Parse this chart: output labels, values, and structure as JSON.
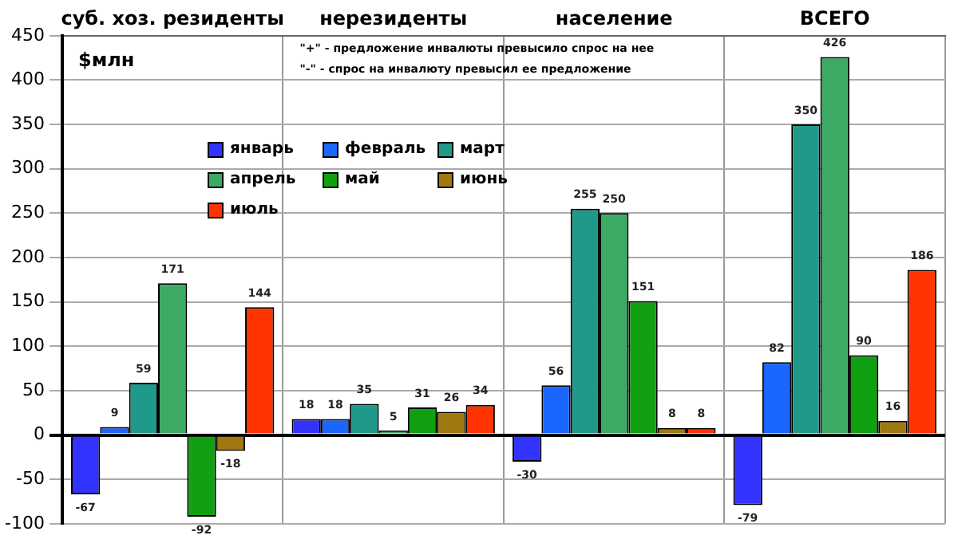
{
  "chart_data": {
    "type": "bar",
    "categories": [
      "суб. хоз. резиденты",
      "нерезиденты",
      "население",
      "ВСЕГО"
    ],
    "series": [
      {
        "name": "январь",
        "color": "#3333ff",
        "values": [
          -67,
          18,
          -30,
          -79
        ]
      },
      {
        "name": "февраль",
        "color": "#1a66ff",
        "values": [
          9,
          18,
          56,
          82
        ]
      },
      {
        "name": "март",
        "color": "#1f9a8a",
        "values": [
          59,
          35,
          255,
          350
        ]
      },
      {
        "name": "апрель",
        "color": "#3caa64",
        "values": [
          171,
          5,
          250,
          426
        ]
      },
      {
        "name": "май",
        "color": "#11a011",
        "values": [
          -92,
          31,
          151,
          90
        ]
      },
      {
        "name": "июнь",
        "color": "#a07810",
        "values": [
          -18,
          26,
          8,
          16
        ]
      },
      {
        "name": "июль",
        "color": "#ff3300",
        "values": [
          144,
          34,
          8,
          186
        ]
      }
    ],
    "ylabel": "$млн",
    "ylim": [
      -100,
      450
    ],
    "yticks": [
      -100,
      -50,
      0,
      50,
      100,
      150,
      200,
      250,
      300,
      350,
      400,
      450
    ],
    "grid": true,
    "legend": "top left",
    "data_labels": true,
    "annotations": [
      "\"+\" - предложение инвалюты превысило спрос на нее",
      "\"-\" - спрос на инвалюту превысил ее предложение"
    ]
  }
}
